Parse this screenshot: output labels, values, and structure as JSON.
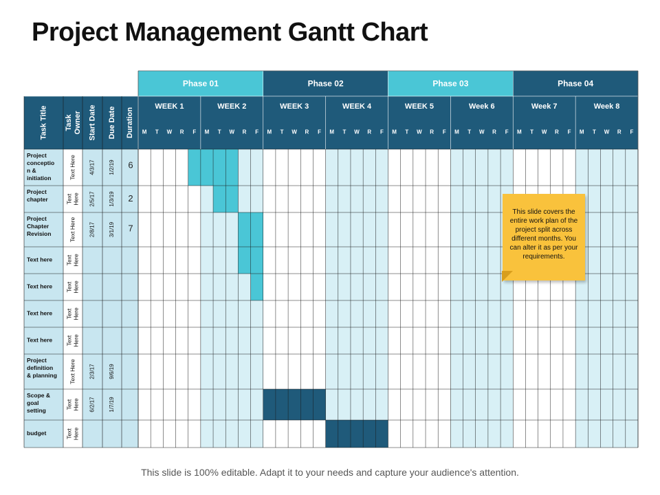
{
  "title": "Project Management Gantt Chart",
  "footer": "This slide is 100% editable. Adapt it to your needs and capture your audience's attention.",
  "note": "This slide covers the entire work plan of the project split across different months. You can alter it as per your requirements.",
  "colors": {
    "phase_light": "#4ac6d6",
    "phase_dark": "#1f5a7a",
    "header_dark": "#1f5a7a",
    "col_light": "#d8f0f6",
    "left_cell": "#c8e6f0",
    "bar_light": "#4ac6d6",
    "bar_dark": "#1f5a7a",
    "grid_line": "#1a1a1a",
    "note_bg": "#f9c23c"
  },
  "chart_data": {
    "type": "table",
    "headers": {
      "task_title": "Task Title",
      "task_owner": "Task Owner",
      "start_date": "Start Date",
      "due_date": "Due Date",
      "duration": "Duration"
    },
    "phases": [
      {
        "label": "Phase 01",
        "weeks": [
          0,
          1
        ],
        "style": "light"
      },
      {
        "label": "Phase 02",
        "weeks": [
          2,
          3
        ],
        "style": "dark"
      },
      {
        "label": "Phase 03",
        "weeks": [
          4,
          5
        ],
        "style": "light"
      },
      {
        "label": "Phase 04",
        "weeks": [
          6,
          7
        ],
        "style": "dark"
      }
    ],
    "weeks": [
      "WEEK 1",
      "WEEK 2",
      "WEEK 3",
      "WEEK 4",
      "WEEK 5",
      "Week 6",
      "Week 7",
      "Week 8"
    ],
    "days": [
      "M",
      "T",
      "W",
      "R",
      "F"
    ],
    "tasks": [
      {
        "title": "Project conceptio n & initiation",
        "owner": "Text Here",
        "start": "4/3/17",
        "due": "1/2/19",
        "duration": "6",
        "bar": {
          "from_day": 4,
          "to_day": 7,
          "style": "light"
        }
      },
      {
        "title": "Project chapter",
        "owner": "Text Here",
        "start": "2/5/17",
        "due": "1/3/19",
        "duration": "2",
        "bar": {
          "from_day": 6,
          "to_day": 7,
          "style": "light"
        }
      },
      {
        "title": "Project Chapter Revision",
        "owner": "Text Here",
        "start": "2/8/17",
        "due": "3/1/19",
        "duration": "7",
        "bar": {
          "from_day": 8,
          "to_day": 9,
          "style": "light"
        }
      },
      {
        "title": "Text here",
        "owner": "Text Here",
        "start": "",
        "due": "",
        "duration": "",
        "bar": {
          "from_day": 8,
          "to_day": 9,
          "style": "light"
        }
      },
      {
        "title": "Text here",
        "owner": "Text Here",
        "start": "",
        "due": "",
        "duration": "",
        "bar": {
          "from_day": 9,
          "to_day": 9,
          "style": "light"
        }
      },
      {
        "title": "Text here",
        "owner": "Text Here",
        "start": "",
        "due": "",
        "duration": "",
        "bar": null
      },
      {
        "title": "Text here",
        "owner": "Text Here",
        "start": "",
        "due": "",
        "duration": "",
        "bar": null
      },
      {
        "title": "Project definition & planning",
        "owner": "Text Here",
        "start": "2/3/17",
        "due": "9/6/19",
        "duration": "",
        "bar": null
      },
      {
        "title": "Scope & goal setting",
        "owner": "Text Here",
        "start": "6/2/17",
        "due": "1/7/19",
        "duration": "",
        "bar": {
          "from_day": 10,
          "to_day": 14,
          "style": "dark"
        }
      },
      {
        "title": "budget",
        "owner": "Text Here",
        "start": "",
        "due": "",
        "duration": "",
        "bar": {
          "from_day": 15,
          "to_day": 19,
          "style": "dark"
        }
      }
    ]
  }
}
